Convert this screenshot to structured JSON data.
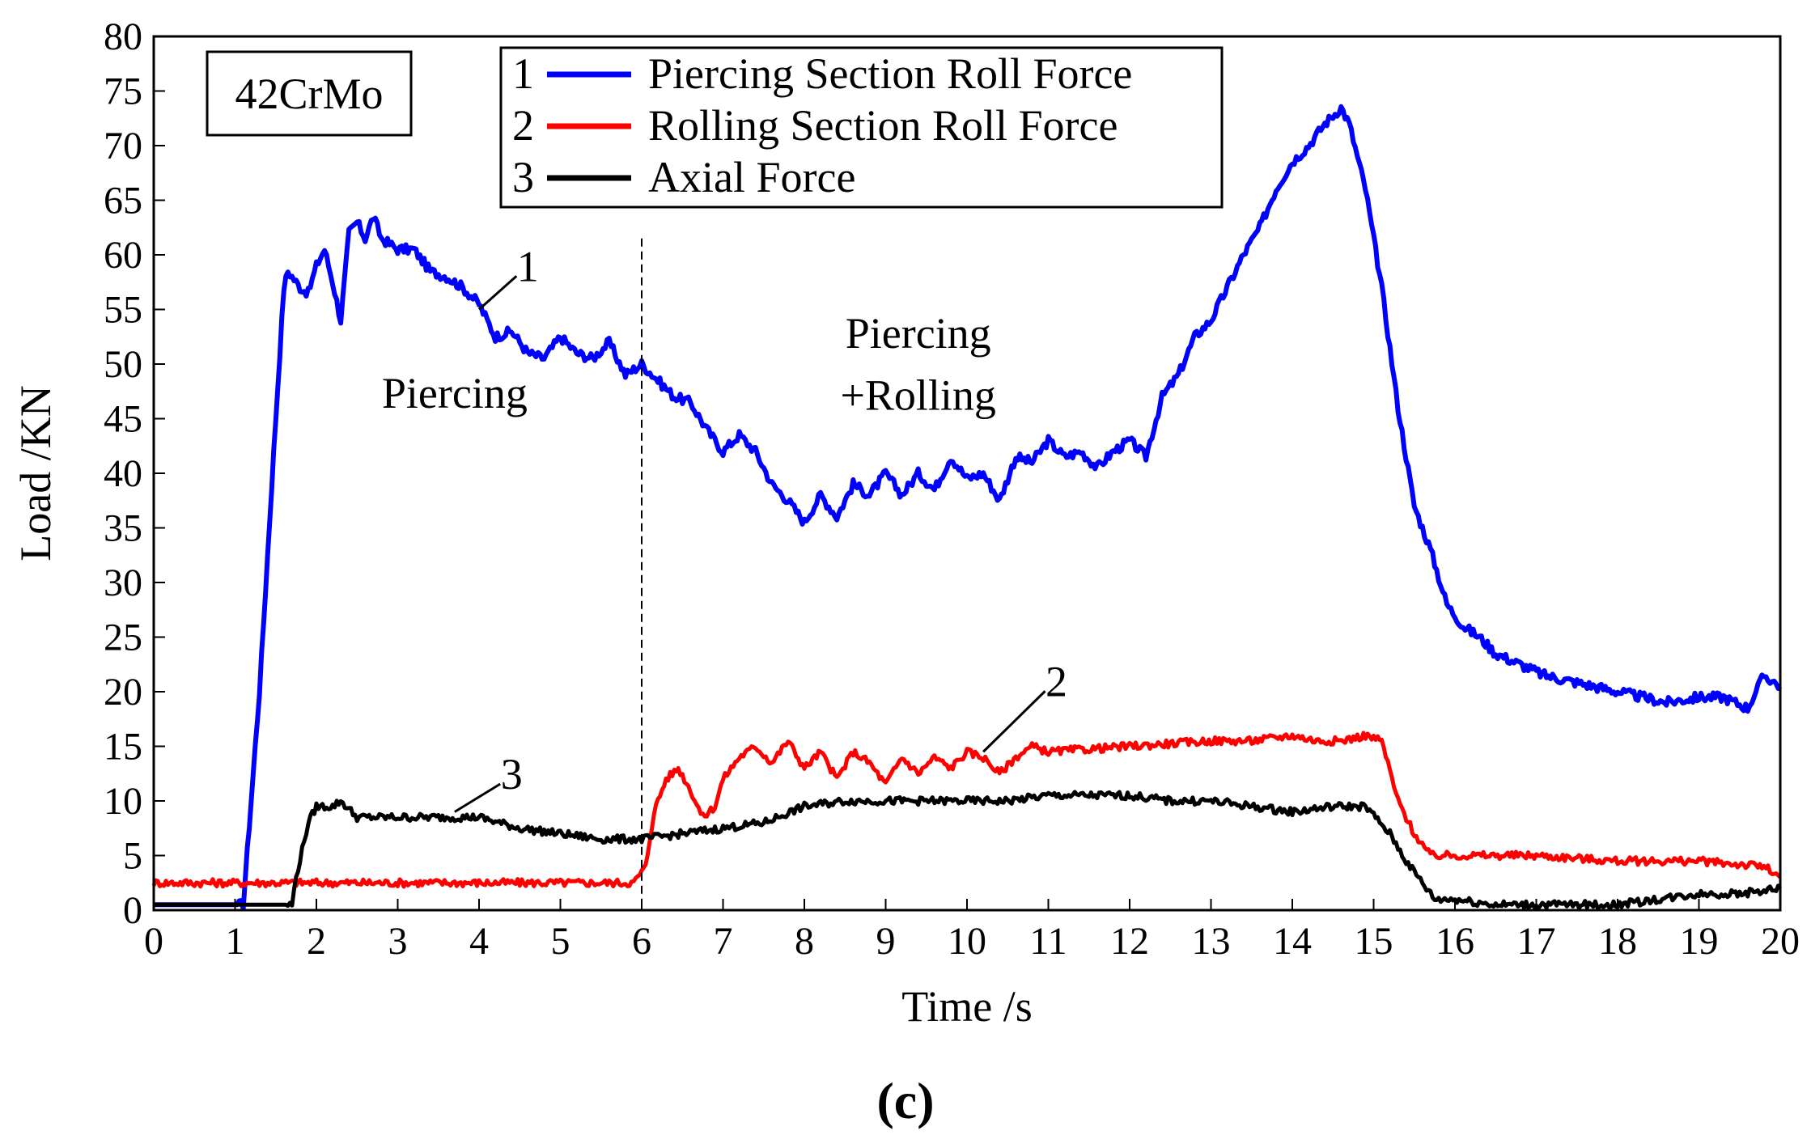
{
  "chart_data": {
    "type": "line",
    "title": "",
    "xlabel": "Time /s",
    "ylabel": "Load /KN",
    "xlim": [
      0,
      20
    ],
    "ylim": [
      0,
      80
    ],
    "xticks": [
      0,
      1,
      2,
      3,
      4,
      5,
      6,
      7,
      8,
      9,
      10,
      11,
      12,
      13,
      14,
      15,
      16,
      17,
      18,
      19,
      20
    ],
    "yticks": [
      0,
      5,
      10,
      15,
      20,
      25,
      30,
      35,
      40,
      45,
      50,
      55,
      60,
      65,
      70,
      75,
      80
    ],
    "grid": false,
    "legend_position": "top-center",
    "material_label": "42CrMo",
    "subfigure_label": "(c)",
    "stage_divider_x": 6,
    "annotations": [
      {
        "text": "Piercing",
        "x": 3.7,
        "y": 46
      },
      {
        "text": "Piercing",
        "x": 9.4,
        "y": 51.5
      },
      {
        "text": "+Rolling",
        "x": 9.4,
        "y": 45.8
      }
    ],
    "series": [
      {
        "id": "1",
        "name": "Piercing Section Roll Force",
        "color": "#0000ff",
        "callout": {
          "label": "1",
          "x": 4.6,
          "y": 58.5,
          "to_x": 4.0,
          "to_y": 55
        },
        "points": [
          [
            0,
            0.5
          ],
          [
            1.1,
            0.5
          ],
          [
            1.3,
            20
          ],
          [
            1.5,
            45
          ],
          [
            1.6,
            57
          ],
          [
            1.65,
            58.5
          ],
          [
            1.8,
            57
          ],
          [
            1.9,
            56.5
          ],
          [
            2.0,
            59
          ],
          [
            2.1,
            60.5
          ],
          [
            2.2,
            57.5
          ],
          [
            2.3,
            54
          ],
          [
            2.4,
            62
          ],
          [
            2.5,
            63
          ],
          [
            2.6,
            61.5
          ],
          [
            2.7,
            63.5
          ],
          [
            2.8,
            61.5
          ],
          [
            3.0,
            60.5
          ],
          [
            3.2,
            60.5
          ],
          [
            3.4,
            58.5
          ],
          [
            3.6,
            58
          ],
          [
            3.8,
            57
          ],
          [
            4.0,
            55.5
          ],
          [
            4.2,
            52.5
          ],
          [
            4.4,
            53
          ],
          [
            4.6,
            51
          ],
          [
            4.8,
            50.5
          ],
          [
            5.0,
            52.5
          ],
          [
            5.2,
            51
          ],
          [
            5.4,
            50.5
          ],
          [
            5.6,
            52
          ],
          [
            5.8,
            49
          ],
          [
            6.0,
            50
          ],
          [
            6.2,
            48.5
          ],
          [
            6.4,
            47
          ],
          [
            6.6,
            46.5
          ],
          [
            6.8,
            44
          ],
          [
            7.0,
            42
          ],
          [
            7.2,
            43.5
          ],
          [
            7.4,
            42
          ],
          [
            7.6,
            39
          ],
          [
            7.8,
            37.5
          ],
          [
            8.0,
            35.5
          ],
          [
            8.2,
            38
          ],
          [
            8.4,
            36
          ],
          [
            8.6,
            39
          ],
          [
            8.8,
            38
          ],
          [
            9.0,
            40
          ],
          [
            9.2,
            38
          ],
          [
            9.4,
            40
          ],
          [
            9.6,
            38.5
          ],
          [
            9.8,
            41.5
          ],
          [
            10.0,
            39.5
          ],
          [
            10.2,
            40
          ],
          [
            10.4,
            37.5
          ],
          [
            10.6,
            41.5
          ],
          [
            10.8,
            41
          ],
          [
            11.0,
            43
          ],
          [
            11.2,
            41.5
          ],
          [
            11.4,
            42
          ],
          [
            11.6,
            40.5
          ],
          [
            11.8,
            42
          ],
          [
            12.0,
            43
          ],
          [
            12.2,
            41.5
          ],
          [
            12.4,
            47
          ],
          [
            12.6,
            49
          ],
          [
            12.8,
            52.5
          ],
          [
            13.0,
            54
          ],
          [
            13.2,
            57
          ],
          [
            13.4,
            60
          ],
          [
            13.6,
            62.5
          ],
          [
            13.8,
            66
          ],
          [
            14.0,
            68.5
          ],
          [
            14.2,
            70
          ],
          [
            14.4,
            72
          ],
          [
            14.6,
            73.5
          ],
          [
            14.7,
            72
          ],
          [
            14.9,
            66
          ],
          [
            15.1,
            57
          ],
          [
            15.3,
            46
          ],
          [
            15.5,
            37
          ],
          [
            15.7,
            33
          ],
          [
            15.9,
            28
          ],
          [
            16.1,
            26
          ],
          [
            16.3,
            25
          ],
          [
            16.5,
            23.5
          ],
          [
            16.8,
            22.5
          ],
          [
            17.1,
            21.5
          ],
          [
            17.4,
            21
          ],
          [
            17.7,
            20.5
          ],
          [
            18.0,
            20
          ],
          [
            18.3,
            19.5
          ],
          [
            18.6,
            19
          ],
          [
            19.0,
            19.5
          ],
          [
            19.3,
            19.5
          ],
          [
            19.6,
            18.5
          ],
          [
            19.8,
            21.5
          ],
          [
            20.0,
            20.5
          ]
        ]
      },
      {
        "id": "2",
        "name": "Rolling Section Roll Force",
        "color": "#ff0000",
        "callout": {
          "label": "2",
          "x": 11.1,
          "y": 20.5,
          "to_x": 10.2,
          "to_y": 14.5
        },
        "points": [
          [
            0,
            2.5
          ],
          [
            1,
            2.5
          ],
          [
            2,
            2.5
          ],
          [
            3,
            2.5
          ],
          [
            4,
            2.5
          ],
          [
            5,
            2.5
          ],
          [
            5.9,
            2.5
          ],
          [
            6.05,
            4
          ],
          [
            6.15,
            9
          ],
          [
            6.3,
            12
          ],
          [
            6.45,
            13
          ],
          [
            6.6,
            11
          ],
          [
            6.75,
            8.5
          ],
          [
            6.9,
            9.5
          ],
          [
            7.0,
            12
          ],
          [
            7.2,
            14
          ],
          [
            7.4,
            15
          ],
          [
            7.6,
            13.5
          ],
          [
            7.8,
            15.5
          ],
          [
            8.0,
            13
          ],
          [
            8.2,
            14.5
          ],
          [
            8.4,
            12
          ],
          [
            8.6,
            14.5
          ],
          [
            8.8,
            13.5
          ],
          [
            9.0,
            11.5
          ],
          [
            9.2,
            14
          ],
          [
            9.4,
            12.5
          ],
          [
            9.6,
            14
          ],
          [
            9.8,
            13
          ],
          [
            10.0,
            14.5
          ],
          [
            10.2,
            14
          ],
          [
            10.4,
            12.5
          ],
          [
            10.6,
            14
          ],
          [
            10.8,
            15
          ],
          [
            11.0,
            14.5
          ],
          [
            12.0,
            15
          ],
          [
            13.0,
            15.5
          ],
          [
            13.5,
            15.5
          ],
          [
            14.0,
            16
          ],
          [
            14.3,
            15.5
          ],
          [
            14.6,
            15.5
          ],
          [
            14.9,
            16
          ],
          [
            15.1,
            15.5
          ],
          [
            15.3,
            10
          ],
          [
            15.5,
            7
          ],
          [
            15.7,
            5
          ],
          [
            16.0,
            5
          ],
          [
            17.0,
            5
          ],
          [
            18.0,
            4.5
          ],
          [
            19.0,
            4.5
          ],
          [
            19.8,
            4
          ],
          [
            20.0,
            3
          ]
        ]
      },
      {
        "id": "3",
        "name": "Axial Force",
        "color": "#000000",
        "callout": {
          "label": "3",
          "x": 4.4,
          "y": 12,
          "to_x": 3.7,
          "to_y": 9
        },
        "points": [
          [
            0,
            0.5
          ],
          [
            1,
            0.5
          ],
          [
            1.7,
            0.5
          ],
          [
            1.75,
            3
          ],
          [
            1.9,
            8
          ],
          [
            2.0,
            9.5
          ],
          [
            2.2,
            9.5
          ],
          [
            2.3,
            10
          ],
          [
            2.5,
            8.5
          ],
          [
            3.0,
            8.5
          ],
          [
            3.5,
            8.5
          ],
          [
            4.0,
            8.5
          ],
          [
            4.5,
            7.5
          ],
          [
            5.0,
            7
          ],
          [
            5.5,
            6.5
          ],
          [
            6.0,
            6.5
          ],
          [
            6.5,
            7
          ],
          [
            7.0,
            7.5
          ],
          [
            7.5,
            8
          ],
          [
            8.0,
            9.5
          ],
          [
            8.5,
            10
          ],
          [
            9.0,
            10
          ],
          [
            9.5,
            10
          ],
          [
            10.0,
            10
          ],
          [
            10.5,
            10
          ],
          [
            11.0,
            10.5
          ],
          [
            11.5,
            10.5
          ],
          [
            12.0,
            10.5
          ],
          [
            12.5,
            10
          ],
          [
            13.0,
            10
          ],
          [
            13.5,
            9.5
          ],
          [
            14.0,
            9
          ],
          [
            14.5,
            9.5
          ],
          [
            14.9,
            9.5
          ],
          [
            15.2,
            7
          ],
          [
            15.4,
            4.5
          ],
          [
            15.6,
            2.5
          ],
          [
            15.75,
            1
          ],
          [
            16.0,
            1
          ],
          [
            16.5,
            0.5
          ],
          [
            17.0,
            0.5
          ],
          [
            17.5,
            0.5
          ],
          [
            18.0,
            0.5
          ],
          [
            18.5,
            1
          ],
          [
            19.0,
            1.5
          ],
          [
            19.5,
            1.5
          ],
          [
            20.0,
            2
          ]
        ]
      }
    ]
  }
}
